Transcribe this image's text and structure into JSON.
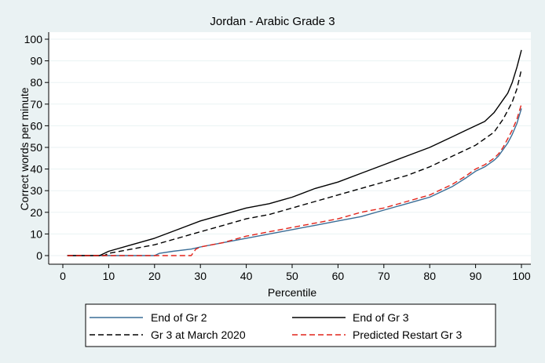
{
  "chart_data": {
    "type": "line",
    "title": "Jordan - Arabic Grade 3",
    "xlabel": "Percentile",
    "ylabel": "Correct words per minute",
    "xlim": [
      0,
      100
    ],
    "ylim": [
      0,
      100
    ],
    "xticks": [
      "0",
      "10",
      "20",
      "30",
      "40",
      "50",
      "60",
      "70",
      "80",
      "90",
      "100"
    ],
    "yticks": [
      "0",
      "10",
      "20",
      "30",
      "40",
      "50",
      "60",
      "70",
      "80",
      "90",
      "100"
    ],
    "grid": true,
    "legend_position": "bottom",
    "series": [
      {
        "name": "End of Gr 2",
        "color": "#3a6d96",
        "dash": "solid",
        "x": [
          1,
          20,
          21,
          24,
          28,
          30,
          35,
          40,
          45,
          50,
          55,
          60,
          65,
          70,
          75,
          80,
          85,
          88,
          90,
          92,
          94,
          95,
          96,
          97,
          98,
          99,
          100
        ],
        "y": [
          0,
          0,
          1,
          2,
          3,
          4,
          6,
          8,
          10,
          12,
          14,
          16,
          18,
          21,
          24,
          27,
          32,
          36,
          39,
          41,
          44,
          46,
          49,
          52,
          56,
          61,
          68
        ]
      },
      {
        "name": "End of Gr 3",
        "color": "#000000",
        "dash": "solid",
        "x": [
          1,
          8,
          9,
          10,
          15,
          20,
          25,
          30,
          35,
          40,
          45,
          50,
          55,
          60,
          65,
          70,
          75,
          80,
          85,
          88,
          90,
          92,
          94,
          95,
          96,
          97,
          98,
          99,
          100
        ],
        "y": [
          0,
          0,
          1,
          2,
          5,
          8,
          12,
          16,
          19,
          22,
          24,
          27,
          31,
          34,
          38,
          42,
          46,
          50,
          55,
          58,
          60,
          62,
          66,
          69,
          72,
          75,
          80,
          87,
          95
        ]
      },
      {
        "name": "Gr 3 at March 2020",
        "color": "#000000",
        "dash": "dashed",
        "x": [
          1,
          9,
          10,
          15,
          20,
          25,
          30,
          35,
          40,
          45,
          50,
          55,
          60,
          65,
          70,
          75,
          80,
          85,
          88,
          90,
          92,
          94,
          95,
          96,
          97,
          98,
          99,
          100
        ],
        "y": [
          0,
          0,
          1,
          3,
          5,
          8,
          11,
          14,
          17,
          19,
          22,
          25,
          28,
          31,
          34,
          37,
          41,
          46,
          49,
          51,
          54,
          57,
          60,
          63,
          67,
          71,
          77,
          86
        ]
      },
      {
        "name": "Predicted Restart Gr 3",
        "color": "#e2231a",
        "dash": "dashed",
        "x": [
          1,
          28,
          29,
          30,
          35,
          40,
          45,
          50,
          55,
          60,
          65,
          70,
          75,
          80,
          85,
          88,
          90,
          92,
          94,
          95,
          96,
          97,
          98,
          99,
          100
        ],
        "y": [
          0,
          0,
          3,
          4,
          6,
          9,
          11,
          13,
          15,
          17,
          20,
          22,
          25,
          28,
          33,
          37,
          40,
          42,
          45,
          47,
          50,
          54,
          58,
          63,
          70
        ]
      }
    ]
  }
}
